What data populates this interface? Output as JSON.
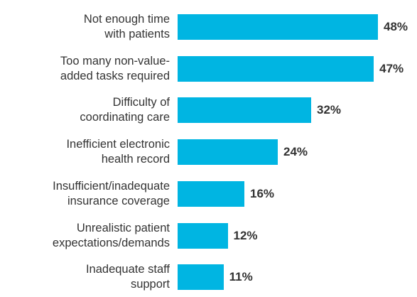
{
  "chart_data": {
    "type": "bar",
    "orientation": "horizontal",
    "categories": [
      "Not enough time\nwith patients",
      "Too many non-value-\nadded tasks required",
      "Difficulty of\ncoordinating care",
      "Inefficient electronic\nhealth record",
      "Insufficient/inadequate\ninsurance coverage",
      "Unrealistic patient\nexpectations/demands",
      "Inadequate staff\nsupport"
    ],
    "values": [
      48,
      47,
      32,
      24,
      16,
      12,
      11
    ],
    "value_labels": [
      "48%",
      "47%",
      "32%",
      "24%",
      "16%",
      "12%",
      "11%"
    ],
    "color": "#00b5e2"
  }
}
